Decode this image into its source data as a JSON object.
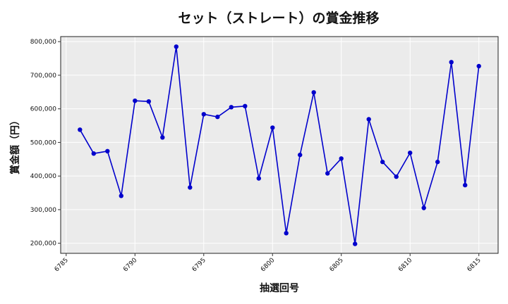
{
  "chart_data": {
    "type": "line",
    "title": "セット（ストレート）の賞金推移",
    "xlabel": "抽選回号",
    "ylabel": "賞金額（円）",
    "xlim": [
      6784.6,
      6816.4
    ],
    "ylim": [
      170000,
      815000
    ],
    "xticks": [
      6785,
      6790,
      6795,
      6800,
      6805,
      6810,
      6815
    ],
    "yticks": [
      200000,
      300000,
      400000,
      500000,
      600000,
      700000,
      800000
    ],
    "ytick_labels": [
      "200,000",
      "300,000",
      "400,000",
      "500,000",
      "600,000",
      "700,000",
      "800,000"
    ],
    "grid": true,
    "series_color": "#0000cc",
    "background_color": "#ebebeb",
    "x": [
      6786,
      6787,
      6788,
      6789,
      6790,
      6791,
      6792,
      6793,
      6794,
      6795,
      6796,
      6797,
      6798,
      6799,
      6800,
      6801,
      6802,
      6803,
      6804,
      6805,
      6806,
      6807,
      6808,
      6809,
      6810,
      6811,
      6812,
      6813,
      6814,
      6815
    ],
    "y": [
      538000,
      467000,
      474000,
      341000,
      624000,
      622000,
      515000,
      785000,
      366000,
      584000,
      576000,
      605000,
      608000,
      393000,
      544000,
      230000,
      463000,
      649000,
      408000,
      452000,
      198000,
      569000,
      442000,
      398000,
      469000,
      305000,
      442000,
      739000,
      373000,
      727000
    ]
  }
}
